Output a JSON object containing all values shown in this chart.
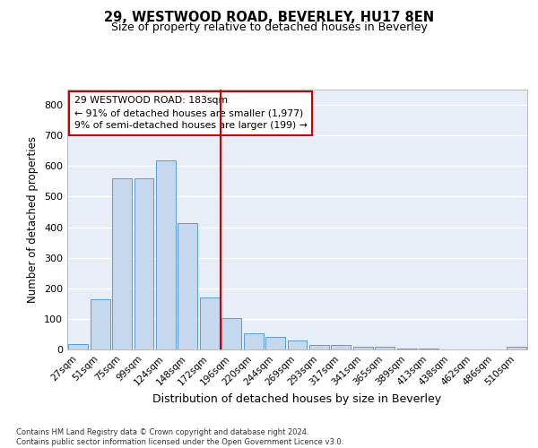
{
  "title1": "29, WESTWOOD ROAD, BEVERLEY, HU17 8EN",
  "title2": "Size of property relative to detached houses in Beverley",
  "xlabel": "Distribution of detached houses by size in Beverley",
  "ylabel": "Number of detached properties",
  "categories": [
    "27sqm",
    "51sqm",
    "75sqm",
    "99sqm",
    "124sqm",
    "148sqm",
    "172sqm",
    "196sqm",
    "220sqm",
    "244sqm",
    "269sqm",
    "293sqm",
    "317sqm",
    "341sqm",
    "365sqm",
    "389sqm",
    "413sqm",
    "438sqm",
    "462sqm",
    "486sqm",
    "510sqm"
  ],
  "values": [
    18,
    163,
    560,
    560,
    617,
    413,
    170,
    103,
    52,
    40,
    30,
    14,
    14,
    10,
    10,
    4,
    4,
    0,
    0,
    0,
    8
  ],
  "bar_color": "#c5d8ee",
  "bar_edge_color": "#5b9bd5",
  "vline_color": "#cc0000",
  "vline_x_index": 6.5,
  "annotation_text": "29 WESTWOOD ROAD: 183sqm\n← 91% of detached houses are smaller (1,977)\n9% of semi-detached houses are larger (199) →",
  "ylim": [
    0,
    850
  ],
  "yticks": [
    0,
    100,
    200,
    300,
    400,
    500,
    600,
    700,
    800
  ],
  "footer": "Contains HM Land Registry data © Crown copyright and database right 2024.\nContains public sector information licensed under the Open Government Licence v3.0.",
  "bg_color": "#e8eef8",
  "grid_color": "#ffffff"
}
